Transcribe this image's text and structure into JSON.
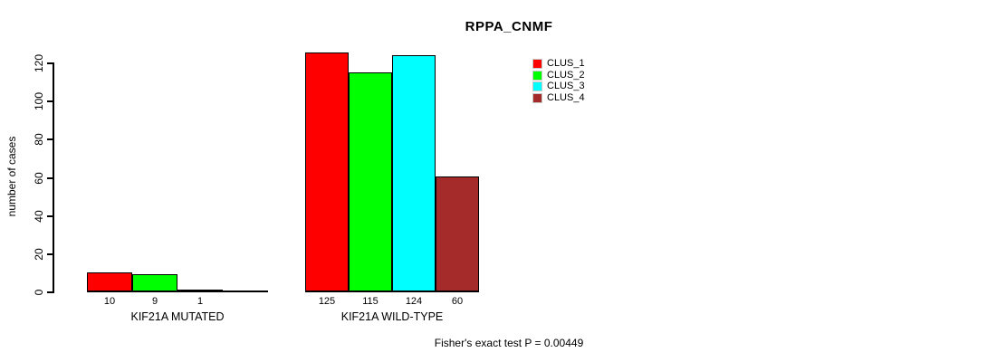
{
  "chart_data": {
    "type": "bar",
    "title": "RPPA_CNMF",
    "ylabel": "number of cases",
    "xlabel": "",
    "ylim": [
      0,
      120
    ],
    "yticks": [
      0,
      20,
      40,
      60,
      80,
      100,
      120
    ],
    "categories": [
      "KIF21A MUTATED",
      "KIF21A WILD-TYPE"
    ],
    "series": [
      {
        "name": "CLUS_1",
        "color": "#ff0000",
        "values": [
          10,
          125
        ]
      },
      {
        "name": "CLUS_2",
        "color": "#00ff00",
        "values": [
          9,
          115
        ]
      },
      {
        "name": "CLUS_3",
        "color": "#00ffff",
        "values": [
          1,
          124
        ]
      },
      {
        "name": "CLUS_4",
        "color": "#a52a2a",
        "values": [
          0,
          60
        ]
      }
    ],
    "bar_labels": [
      [
        "10",
        "9",
        "1",
        ""
      ],
      [
        "125",
        "115",
        "124",
        "60"
      ]
    ],
    "legend_position": "top-right",
    "grid": false,
    "annotation": "Fisher's exact test P = 0.00449"
  }
}
